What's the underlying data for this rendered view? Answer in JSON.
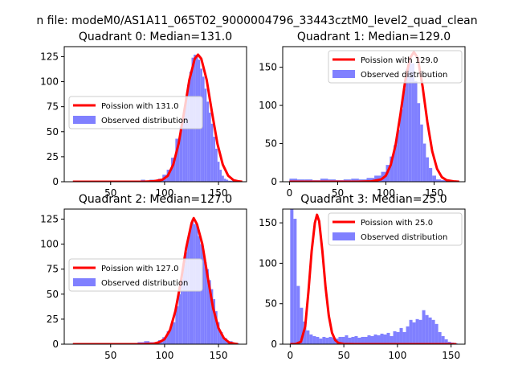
{
  "figure": {
    "suptitle": "n file: modeM0/AS1A11_065T02_9000004796_33443cztM0_level2_quad_clean",
    "colors": {
      "model": "#ff0000",
      "observed": "#8080ff",
      "axes": "#000000",
      "background": "#ffffff"
    }
  },
  "chart_data": [
    {
      "type": "bar",
      "title": "Quadrant 0: Median=131.0",
      "xlim": [
        7,
        176
      ],
      "ylim": [
        0,
        135
      ],
      "xticks": [
        50,
        100,
        150
      ],
      "yticks": [
        0,
        25,
        50,
        75,
        100,
        125
      ],
      "legend_position": "center-left",
      "legend": [
        "Poission with 131.0",
        "Observed distribution"
      ],
      "observed": {
        "name": "Observed distribution",
        "x": [
          80,
          84,
          88,
          92,
          96,
          100,
          104,
          108,
          112,
          116,
          118,
          120,
          122,
          124,
          126,
          128,
          130,
          132,
          134,
          136,
          138,
          140,
          142,
          144,
          146,
          148,
          150,
          152,
          154,
          156,
          158,
          160,
          164,
          168
        ],
        "values": [
          2,
          1,
          2,
          2,
          3,
          7,
          12,
          24,
          43,
          55,
          70,
          85,
          97,
          110,
          124,
          127,
          126,
          122,
          113,
          105,
          93,
          80,
          69,
          58,
          45,
          33,
          20,
          12,
          6,
          3,
          2,
          1,
          1,
          1
        ]
      },
      "model": {
        "name": "Poission with 131.0",
        "x": [
          15,
          40,
          60,
          80,
          90,
          98,
          103,
          108,
          113,
          118,
          123,
          128,
          131,
          134,
          139,
          144,
          149,
          154,
          159,
          164,
          168,
          172
        ],
        "values": [
          0,
          0,
          0,
          0,
          0.5,
          2,
          6,
          17,
          38,
          69,
          102,
          123,
          127,
          123,
          102,
          69,
          38,
          17,
          6,
          1.5,
          0.5,
          0
        ]
      }
    },
    {
      "type": "bar",
      "title": "Quadrant 1: Median=129.0",
      "xlim": [
        -7,
        182
      ],
      "ylim": [
        0,
        177
      ],
      "xticks": [
        0,
        50,
        100,
        150
      ],
      "yticks": [
        0,
        50,
        100,
        150
      ],
      "legend_position": "upper-right",
      "legend": [
        "Poission with 129.0",
        "Observed distribution"
      ],
      "observed": {
        "name": "Observed distribution",
        "x": [
          4,
          12,
          20,
          28,
          36,
          44,
          52,
          60,
          68,
          76,
          84,
          92,
          98,
          102,
          106,
          110,
          113,
          116,
          119,
          122,
          125,
          128,
          131,
          134,
          137,
          140,
          143,
          146,
          150,
          154,
          160,
          166,
          172
        ],
        "values": [
          4,
          3,
          3,
          2,
          4,
          3,
          2,
          3,
          4,
          3,
          5,
          8,
          13,
          22,
          33,
          48,
          68,
          95,
          122,
          148,
          160,
          155,
          132,
          103,
          75,
          50,
          32,
          18,
          8,
          3,
          2,
          1,
          1
        ]
      },
      "model": {
        "name": "Poission with 129.0",
        "x": [
          0,
          40,
          70,
          85,
          95,
          100,
          105,
          110,
          115,
          120,
          125,
          129,
          133,
          138,
          143,
          148,
          153,
          158,
          163,
          170,
          176
        ],
        "values": [
          0,
          0,
          0,
          0.5,
          3,
          8,
          22,
          48,
          88,
          132,
          162,
          170,
          162,
          125,
          78,
          40,
          17,
          6,
          2,
          0.5,
          0
        ]
      }
    },
    {
      "type": "bar",
      "title": "Quadrant 2: Median=127.0",
      "xlim": [
        7,
        176
      ],
      "ylim": [
        0,
        135
      ],
      "xticks": [
        50,
        100,
        150
      ],
      "yticks": [
        0,
        25,
        50,
        75,
        100,
        125
      ],
      "legend_position": "center-left",
      "legend": [
        "Poission with 127.0",
        "Observed distribution"
      ],
      "observed": {
        "name": "Observed distribution",
        "x": [
          78,
          84,
          88,
          92,
          96,
          100,
          104,
          108,
          112,
          114,
          116,
          118,
          120,
          122,
          124,
          126,
          128,
          130,
          132,
          134,
          136,
          138,
          140,
          142,
          144,
          146,
          148,
          150,
          152,
          156,
          160,
          166
        ],
        "values": [
          2,
          3,
          2,
          2,
          4,
          7,
          13,
          22,
          38,
          50,
          65,
          80,
          92,
          105,
          115,
          125,
          120,
          118,
          108,
          100,
          92,
          82,
          75,
          64,
          55,
          45,
          33,
          22,
          12,
          6,
          3,
          1
        ]
      },
      "model": {
        "name": "Poission with 127.0",
        "x": [
          15,
          40,
          60,
          80,
          90,
          95,
          100,
          105,
          110,
          115,
          120,
          125,
          127,
          130,
          135,
          140,
          145,
          150,
          155,
          160,
          165,
          168
        ],
        "values": [
          0,
          0,
          0,
          0,
          0.5,
          2,
          5,
          14,
          33,
          62,
          96,
          121,
          126,
          120,
          100,
          67,
          36,
          16,
          6,
          1.5,
          0.5,
          0
        ]
      }
    },
    {
      "type": "bar",
      "title": "Quadrant 3: Median=25.0",
      "xlim": [
        -7,
        163
      ],
      "ylim": [
        0,
        167
      ],
      "xticks": [
        0,
        50,
        100,
        150
      ],
      "yticks": [
        0,
        50,
        100,
        150
      ],
      "legend_position": "upper-right",
      "legend": [
        "Poission with 25.0",
        "Observed distribution"
      ],
      "observed": {
        "name": "Observed distribution",
        "x": [
          1.5,
          4.5,
          7.5,
          10.5,
          13.5,
          16.5,
          19.5,
          22.5,
          25.5,
          28.5,
          31.5,
          34.5,
          37.5,
          40.5,
          43.5,
          46.5,
          49.5,
          52.5,
          55.5,
          58.5,
          61.5,
          64.5,
          67.5,
          70.5,
          73.5,
          76.5,
          79.5,
          82.5,
          85.5,
          88.5,
          91.5,
          94.5,
          97.5,
          100.5,
          103.5,
          106.5,
          109.5,
          112.5,
          115.5,
          118.5,
          121.5,
          124.5,
          127.5,
          130.5,
          133.5,
          136.5,
          139.5,
          142.5,
          145.5,
          148.5,
          151.5,
          154.5
        ],
        "values": [
          167,
          155,
          72,
          45,
          28,
          17,
          12,
          10,
          9,
          7,
          9,
          8,
          9,
          8,
          7,
          9,
          9,
          11,
          8,
          9,
          10,
          8,
          9,
          9,
          11,
          10,
          12,
          11,
          13,
          12,
          14,
          10,
          16,
          15,
          20,
          15,
          22,
          30,
          27,
          31,
          30,
          42,
          36,
          33,
          30,
          25,
          15,
          10,
          6,
          3,
          2,
          1
        ]
      },
      "model": {
        "name": "Poission with 25.0",
        "x": [
          0,
          5,
          10,
          14,
          17,
          20,
          23,
          25,
          27,
          30,
          33,
          36,
          39,
          42,
          45,
          50,
          60,
          80,
          120,
          155
        ],
        "values": [
          0,
          0.2,
          3,
          22,
          65,
          115,
          150,
          160,
          152,
          115,
          70,
          35,
          14,
          5,
          1.5,
          0.3,
          0,
          0,
          0,
          0
        ]
      }
    }
  ]
}
